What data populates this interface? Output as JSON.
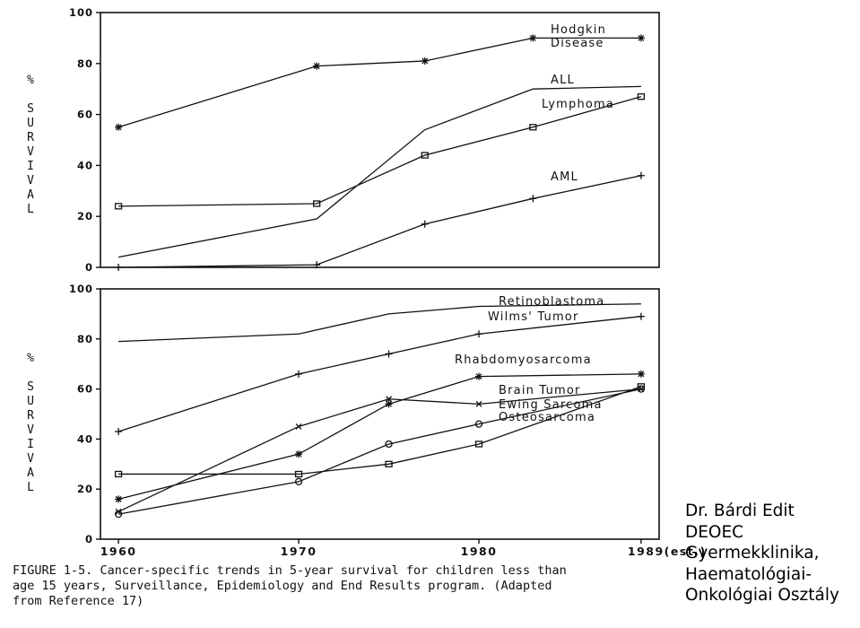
{
  "chart_data": [
    {
      "type": "line",
      "ylabel": "% SURVIVAL",
      "ylim": [
        0,
        100
      ],
      "yticks": [
        0,
        20,
        40,
        60,
        80,
        100
      ],
      "xlim": [
        1959,
        1990
      ],
      "series": [
        {
          "name": "Hodgkin Disease",
          "marker": "star",
          "points": [
            [
              1960,
              55
            ],
            [
              1971,
              79
            ],
            [
              1977,
              81
            ],
            [
              1983,
              90
            ],
            [
              1989,
              90
            ]
          ]
        },
        {
          "name": "ALL",
          "marker": "none",
          "points": [
            [
              1960,
              4
            ],
            [
              1971,
              19
            ],
            [
              1977,
              54
            ],
            [
              1983,
              70
            ],
            [
              1989,
              71
            ]
          ]
        },
        {
          "name": "Lymphoma",
          "marker": "circle-square",
          "points": [
            [
              1960,
              24
            ],
            [
              1971,
              25
            ],
            [
              1977,
              44
            ],
            [
              1983,
              55
            ],
            [
              1989,
              67
            ]
          ]
        },
        {
          "name": "AML",
          "marker": "plus",
          "points": [
            [
              1960,
              0
            ],
            [
              1971,
              1
            ],
            [
              1977,
              17
            ],
            [
              1983,
              27
            ],
            [
              1989,
              36
            ]
          ]
        }
      ]
    },
    {
      "type": "line",
      "ylabel": "% SURVIVAL",
      "ylim": [
        0,
        100
      ],
      "yticks": [
        0,
        20,
        40,
        60,
        80,
        100
      ],
      "xlim": [
        1959,
        1990
      ],
      "xticks": [
        "1960",
        "1970",
        "1980",
        "1989(est.)"
      ],
      "xtick_values": [
        1960,
        1970,
        1980,
        1989
      ],
      "series": [
        {
          "name": "Retinoblastoma",
          "marker": "none",
          "points": [
            [
              1960,
              79
            ],
            [
              1970,
              82
            ],
            [
              1975,
              90
            ],
            [
              1980,
              93
            ],
            [
              1989,
              94
            ]
          ]
        },
        {
          "name": "Wilms' Tumor",
          "marker": "plus",
          "points": [
            [
              1960,
              43
            ],
            [
              1970,
              66
            ],
            [
              1975,
              74
            ],
            [
              1980,
              82
            ],
            [
              1989,
              89
            ]
          ]
        },
        {
          "name": "Rhabdomyosarcoma",
          "marker": "star",
          "points": [
            [
              1960,
              16
            ],
            [
              1970,
              34
            ],
            [
              1975,
              54
            ],
            [
              1980,
              65
            ],
            [
              1989,
              66
            ]
          ]
        },
        {
          "name": "Brain Tumor",
          "marker": "square",
          "points": [
            [
              1960,
              26
            ],
            [
              1970,
              26
            ],
            [
              1975,
              30
            ],
            [
              1980,
              38
            ],
            [
              1989,
              61
            ]
          ]
        },
        {
          "name": "Ewing Sarcoma",
          "marker": "circle",
          "points": [
            [
              1960,
              10
            ],
            [
              1970,
              23
            ],
            [
              1975,
              38
            ],
            [
              1980,
              46
            ],
            [
              1989,
              60
            ]
          ]
        },
        {
          "name": "Osteosarcoma",
          "marker": "x",
          "points": [
            [
              1960,
              11
            ],
            [
              1970,
              45
            ],
            [
              1975,
              56
            ],
            [
              1980,
              54
            ],
            [
              1989,
              60
            ]
          ]
        }
      ]
    }
  ],
  "caption": {
    "line1": "FIGURE 1-5.    Cancer-specific trends in 5-year survival for children less than",
    "line2": "age 15 years, Surveillance, Epidemiology and End Results program. (Adapted",
    "line3": "from Reference 17)"
  },
  "author": {
    "line1": "Dr. Bárdi Edit",
    "line2": "DEOEC",
    "line3": "Gyermekklinika,",
    "line4": "Haematológiai-",
    "line5": "Onkológiai Osztály"
  },
  "colors": {
    "ink": "#111111",
    "background": "#ffffff"
  }
}
